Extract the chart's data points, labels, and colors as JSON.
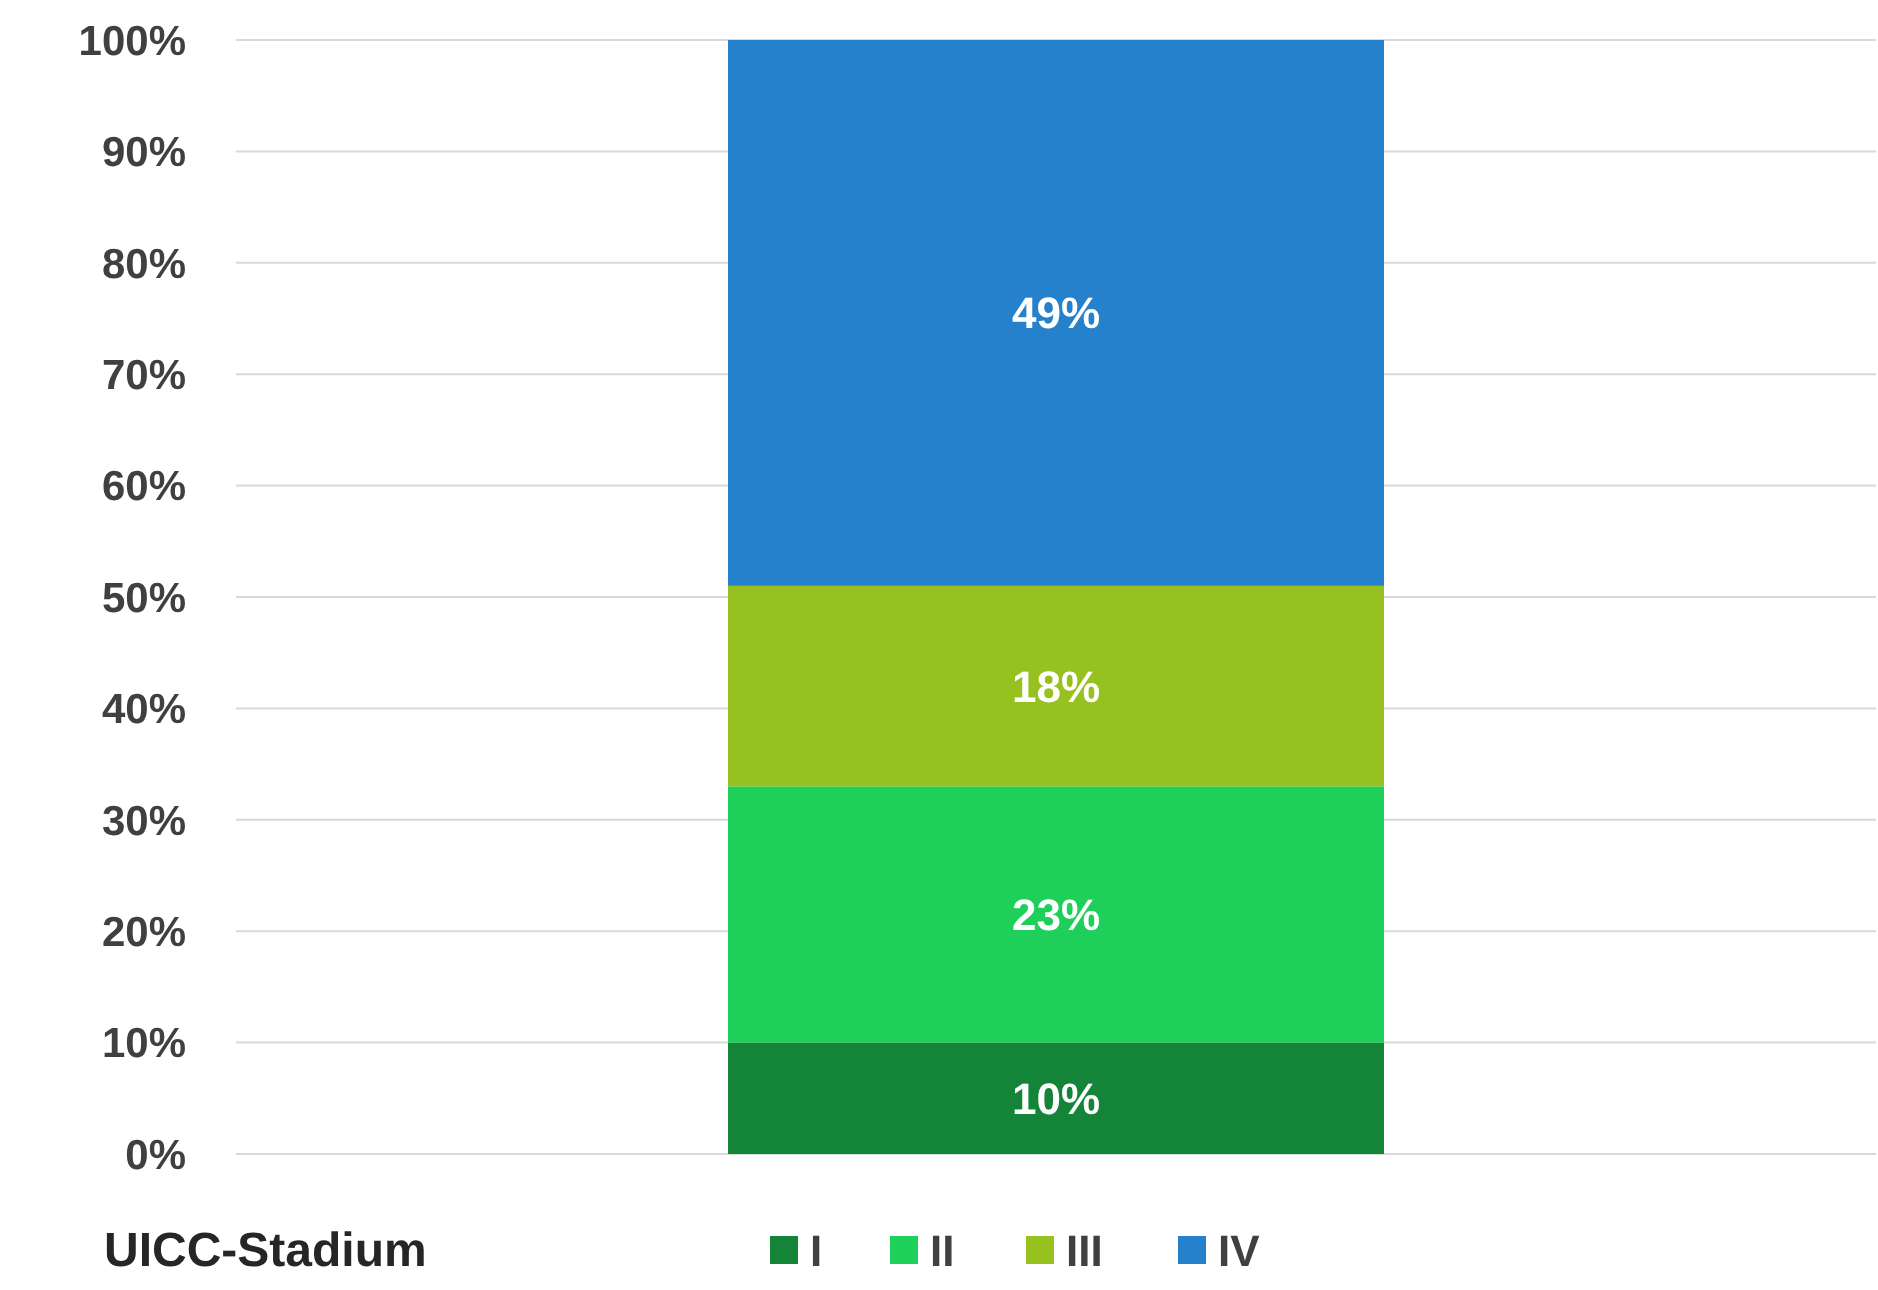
{
  "chart_data": {
    "type": "bar",
    "stacked": true,
    "categories": [
      null
    ],
    "series": [
      {
        "name": "I",
        "color": "#148538",
        "values": [
          10
        ],
        "value_labels": [
          "10%"
        ]
      },
      {
        "name": "II",
        "color": "#1ecf5a",
        "values": [
          23
        ],
        "value_labels": [
          "23%"
        ]
      },
      {
        "name": "III",
        "color": "#97c11f",
        "values": [
          18
        ],
        "value_labels": [
          "18%"
        ]
      },
      {
        "name": "IV",
        "color": "#2681cc",
        "values": [
          49
        ],
        "value_labels": [
          "49%"
        ]
      }
    ],
    "ylim": [
      0,
      100
    ],
    "yticks": [
      {
        "value": 0,
        "label": "0%"
      },
      {
        "value": 10,
        "label": "10%"
      },
      {
        "value": 20,
        "label": "20%"
      },
      {
        "value": 30,
        "label": "30%"
      },
      {
        "value": 40,
        "label": "40%"
      },
      {
        "value": 50,
        "label": "50%"
      },
      {
        "value": 60,
        "label": "60%"
      },
      {
        "value": 70,
        "label": "70%"
      },
      {
        "value": 80,
        "label": "80%"
      },
      {
        "value": 90,
        "label": "90%"
      },
      {
        "value": 100,
        "label": "100%"
      }
    ],
    "grid": "y",
    "legend": "bottom",
    "legend_title": "UICC-Stadium",
    "tick_labels": "y"
  }
}
